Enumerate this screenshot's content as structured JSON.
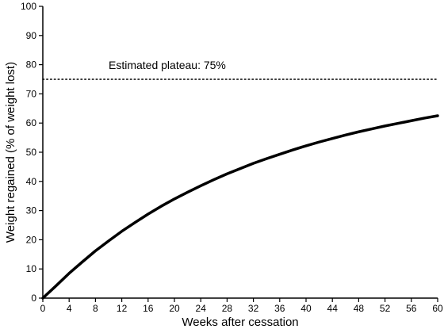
{
  "chart_data": {
    "type": "line",
    "title": "",
    "xlabel": "Weeks after cessation",
    "ylabel": "Weight regained (% of weight lost)",
    "xlim": [
      0,
      60
    ],
    "ylim": [
      0,
      100
    ],
    "x_ticks": [
      0,
      4,
      8,
      12,
      16,
      20,
      24,
      28,
      32,
      36,
      40,
      44,
      48,
      52,
      56,
      60
    ],
    "y_ticks": [
      0,
      10,
      20,
      30,
      40,
      50,
      60,
      70,
      80,
      90,
      100
    ],
    "grid": false,
    "series": [
      {
        "x": [
          0,
          2,
          4,
          6,
          8,
          10,
          12,
          14,
          16,
          18,
          20,
          22,
          24,
          26,
          28,
          30,
          32,
          34,
          36,
          38,
          40,
          42,
          44,
          46,
          48,
          50,
          52,
          54,
          56,
          58,
          60
        ],
        "values": [
          0,
          4.2,
          8.5,
          12.4,
          16.2,
          19.6,
          22.9,
          25.9,
          28.8,
          31.5,
          34.0,
          36.3,
          38.5,
          40.6,
          42.6,
          44.4,
          46.2,
          47.8,
          49.3,
          50.8,
          52.2,
          53.5,
          54.7,
          55.9,
          57.0,
          58.0,
          59.0,
          59.9,
          60.8,
          61.7,
          62.5
        ],
        "color": "#000000",
        "style": "solid"
      }
    ],
    "reference_line": {
      "y": 75,
      "style": "dotted",
      "label": "Estimated plateau: 75%"
    }
  }
}
